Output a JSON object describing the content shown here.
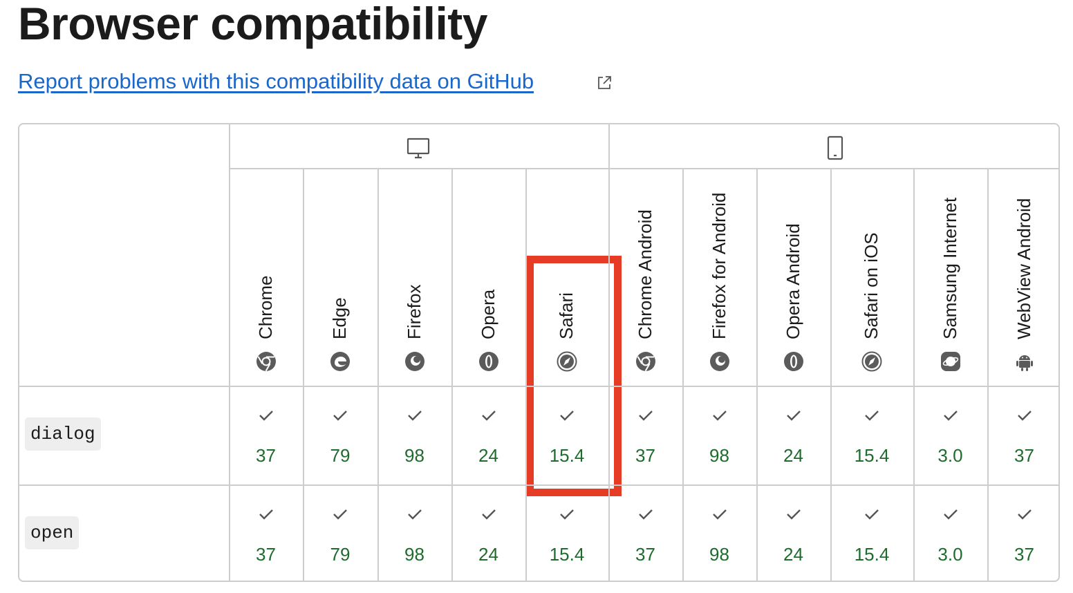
{
  "page": {
    "title": "Browser compatibility",
    "report_link": "Report problems with this compatibility data on GitHub"
  },
  "groups": [
    {
      "name": "desktop",
      "icon": "desktop-icon"
    },
    {
      "name": "mobile",
      "icon": "mobile-icon"
    }
  ],
  "browsers": [
    {
      "name": "Chrome",
      "icon": "chrome-icon"
    },
    {
      "name": "Edge",
      "icon": "edge-icon"
    },
    {
      "name": "Firefox",
      "icon": "firefox-icon"
    },
    {
      "name": "Opera",
      "icon": "opera-icon"
    },
    {
      "name": "Safari",
      "icon": "safari-icon"
    },
    {
      "name": "Chrome Android",
      "icon": "chrome-icon"
    },
    {
      "name": "Firefox for Android",
      "icon": "firefox-icon"
    },
    {
      "name": "Opera Android",
      "icon": "opera-icon"
    },
    {
      "name": "Safari on iOS",
      "icon": "safari-icon"
    },
    {
      "name": "Samsung Internet",
      "icon": "samsung-internet-icon"
    },
    {
      "name": "WebView Android",
      "icon": "android-icon"
    }
  ],
  "features": [
    {
      "name": "dialog",
      "support": [
        "37",
        "79",
        "98",
        "24",
        "15.4",
        "37",
        "98",
        "24",
        "15.4",
        "3.0",
        "37"
      ]
    },
    {
      "name": "open",
      "support": [
        "37",
        "79",
        "98",
        "24",
        "15.4",
        "37",
        "98",
        "24",
        "15.4",
        "3.0",
        "37"
      ]
    }
  ],
  "support_status_icon": "check-icon",
  "highlighted_browser": "Safari",
  "colors": {
    "link": "#1a66c9",
    "version": "#1e6c2c",
    "highlight": "#e63b25",
    "border": "#cdcdcd"
  }
}
